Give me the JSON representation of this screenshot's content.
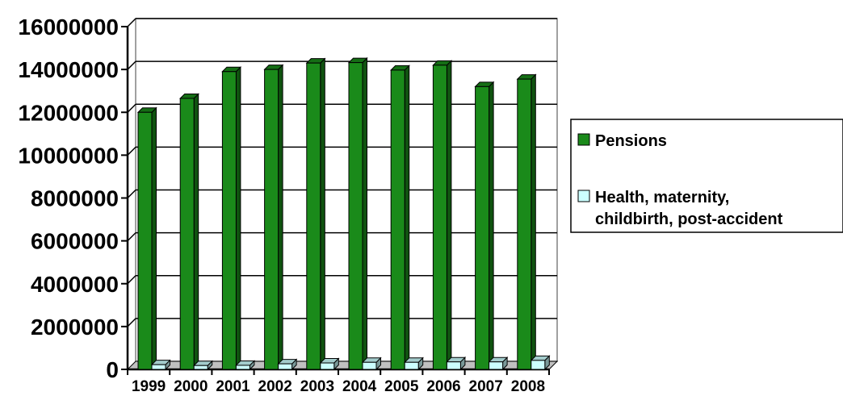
{
  "chart_data": {
    "type": "bar",
    "categories": [
      "1999",
      "2000",
      "2001",
      "2002",
      "2003",
      "2004",
      "2005",
      "2006",
      "2007",
      "2008"
    ],
    "series": [
      {
        "name": "Pensions",
        "color": "#1a8a1a",
        "values": [
          12000000,
          12650000,
          13900000,
          14000000,
          14300000,
          14320000,
          13970000,
          14200000,
          13200000,
          13550000
        ]
      },
      {
        "name": "Health, maternity, childbirth, post-accident",
        "color": "#ccffff",
        "values": [
          220000,
          180000,
          190000,
          260000,
          300000,
          330000,
          330000,
          350000,
          350000,
          420000
        ]
      }
    ],
    "ylim": [
      0,
      16000000
    ],
    "yticks": [
      "0",
      "2000000",
      "4000000",
      "6000000",
      "8000000",
      "10000000",
      "12000000",
      "14000000",
      "16000000"
    ],
    "grid": true,
    "legend_position": "right"
  },
  "legend": {
    "item1_line1": "Pensions",
    "item2_line1": "Health, maternity,",
    "item2_line2": "childbirth, post-accident"
  }
}
